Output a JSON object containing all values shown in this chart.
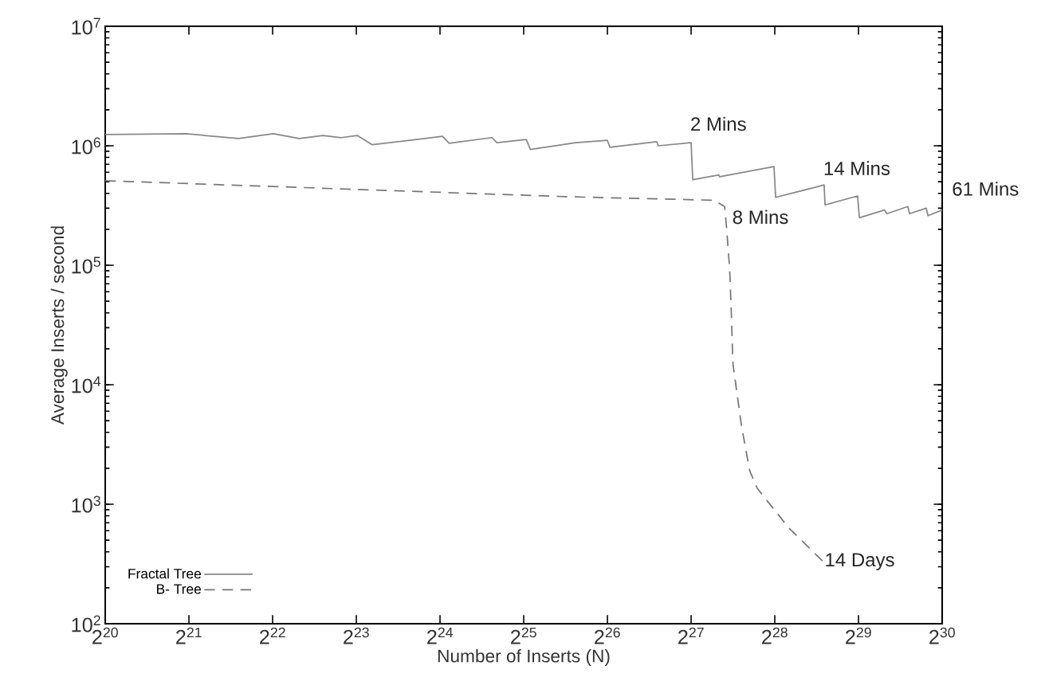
{
  "chart_data": {
    "type": "line",
    "xlabel": "Number of Inserts (N)",
    "ylabel": "Average Inserts / second",
    "log": "xy",
    "xlim": [
      1048576,
      1073741824
    ],
    "ylim": [
      100,
      10000000
    ],
    "xticks": [
      {
        "value": 1048576,
        "label": "2$^{20}$"
      },
      {
        "value": 2097152,
        "label": "2$^{21}$"
      },
      {
        "value": 4194304,
        "label": "2$^{22}$"
      },
      {
        "value": 8388608,
        "label": "2$^{23}$"
      },
      {
        "value": 16777216,
        "label": "2$^{24}$"
      },
      {
        "value": 33554432,
        "label": "2$^{25}$"
      },
      {
        "value": 67108864,
        "label": "2$^{26}$"
      },
      {
        "value": 134217728,
        "label": "2$^{27}$"
      },
      {
        "value": 268435456,
        "label": "2$^{28}$"
      },
      {
        "value": 536870912,
        "label": "2$^{29}$"
      },
      {
        "value": 1073741824,
        "label": "2$^{30}$"
      }
    ],
    "yticks": [
      {
        "value": 100,
        "label": "10$^{2}$"
      },
      {
        "value": 1000,
        "label": "10$^{3}$"
      },
      {
        "value": 10000,
        "label": "10$^{4}$"
      },
      {
        "value": 100000,
        "label": "10$^{5}$"
      },
      {
        "value": 1000000,
        "label": "10$^{6}$"
      },
      {
        "value": 10000000,
        "label": "10$^{7}$"
      }
    ],
    "legend": "bottom left",
    "series": [
      {
        "name": "Fractal Tree",
        "color": "#888888",
        "line_style": "solid",
        "x": [
          1048576,
          2050000,
          3160000,
          4220000,
          5230000,
          6360000,
          7400000,
          8450000,
          9570000,
          17130000,
          18100000,
          25790000,
          26880000,
          34260000,
          35470000,
          51570000,
          67110000,
          68520000,
          101000000,
          102400000,
          134200000,
          136100000,
          168700000,
          169900000,
          266600000,
          270300000,
          404000000,
          406900000,
          533100000,
          540600000,
          665700000,
          679700000,
          808000000,
          819300000,
          941100000,
          954600000,
          1073741824
        ],
        "values": [
          1240000,
          1260000,
          1150000,
          1260000,
          1150000,
          1220000,
          1170000,
          1220000,
          1020000,
          1200000,
          1050000,
          1170000,
          1060000,
          1130000,
          930000,
          1060000,
          1110000,
          970000,
          1080000,
          1000000,
          1060000,
          520000,
          570000,
          550000,
          670000,
          370000,
          470000,
          320000,
          380000,
          250000,
          290000,
          270000,
          310000,
          270000,
          300000,
          260000,
          290000
        ]
      },
      {
        "name": "B- Tree",
        "color": "#777777",
        "line_style": "dashed",
        "x": [
          1048576,
          47450000,
          161900000,
          177200000,
          179600000,
          184700000,
          187200000,
          189800000,
          203500000,
          218100000,
          232100000,
          302000000,
          401300000
        ],
        "values": [
          510000,
          375000,
          350000,
          310000,
          220000,
          94000,
          41000,
          15000,
          4600,
          1900,
          1360,
          630,
          330
        ]
      }
    ],
    "annotations": [
      {
        "text": "2 Mins",
        "x": 134200000,
        "y": 1060000
      },
      {
        "text": "14 Mins",
        "x": 404000000,
        "y": 470000
      },
      {
        "text": "61 Mins",
        "x": 1073741824,
        "y": 290000
      },
      {
        "text": "8 Mins",
        "x": 177200000,
        "y": 310000
      },
      {
        "text": "14 Days",
        "x": 401300000,
        "y": 330
      }
    ]
  }
}
